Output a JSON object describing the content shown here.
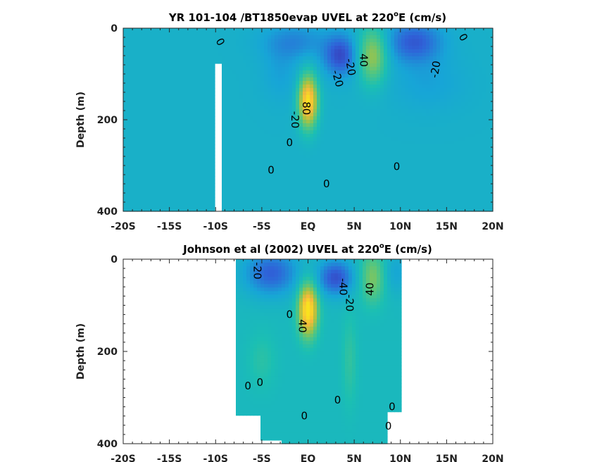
{
  "chart_data": [
    {
      "type": "heatmap",
      "id": "model",
      "title_main": "YR 101-104 /BT1850evap UVEL at 220",
      "title_sup": "o",
      "title_tail": "E (cm/s)",
      "ylabel": "Depth (m)",
      "x_ticks": [
        "-20S",
        "-15S",
        "-10S",
        "-5S",
        "EQ",
        "5N",
        "10N",
        "15N",
        "20N"
      ],
      "x_tick_values": [
        -20,
        -15,
        -10,
        -5,
        0,
        5,
        10,
        15,
        20
      ],
      "y_ticks": [
        "0",
        "200",
        "400"
      ],
      "y_tick_values": [
        0,
        200,
        400
      ],
      "xlim": [
        -20,
        20
      ],
      "ylim": [
        400,
        0
      ],
      "colormap": [
        "#3e26a8",
        "#2f62d8",
        "#17a5d7",
        "#1bbfb3",
        "#57c67d",
        "#aec23f",
        "#f4ba3b",
        "#f9e11f"
      ],
      "data_range": [
        -60,
        100
      ],
      "background_value": -5,
      "data_features": [
        {
          "lat": 0,
          "depth": 160,
          "value": 105,
          "sx": 1.0,
          "sz": 55
        },
        {
          "lat": 7,
          "depth": 60,
          "value": 55,
          "sx": 1.5,
          "sz": 60
        },
        {
          "lat": 3.5,
          "depth": 60,
          "value": -40,
          "sx": 1.8,
          "sz": 45
        },
        {
          "lat": -1.5,
          "depth": 30,
          "value": -20,
          "sx": 3.5,
          "sz": 40
        },
        {
          "lat": 11.5,
          "depth": 30,
          "value": -35,
          "sx": 3.0,
          "sz": 45
        },
        {
          "lat": 13,
          "depth": 120,
          "value": -10,
          "sx": 4.0,
          "sz": 60
        },
        {
          "lat": -3,
          "depth": 100,
          "value": -10,
          "sx": 2.0,
          "sz": 60
        }
      ],
      "mask": [
        {
          "lat_range": [
            -10,
            -9.2
          ],
          "depth_range": [
            80,
            400
          ]
        }
      ],
      "contour_labels": [
        {
          "text": "0",
          "lat": -9.5,
          "depth": 30,
          "angle": 60
        },
        {
          "text": "-20",
          "lat": 3.2,
          "depth": 110,
          "angle": 75
        },
        {
          "text": "-20",
          "lat": 4.6,
          "depth": 85,
          "angle": 80
        },
        {
          "text": "40",
          "lat": 6.0,
          "depth": 70,
          "angle": 90
        },
        {
          "text": "-20",
          "lat": 13.8,
          "depth": 90,
          "angle": -80
        },
        {
          "text": "0",
          "lat": 16.8,
          "depth": 20,
          "angle": 60
        },
        {
          "text": "80",
          "lat": -0.2,
          "depth": 175,
          "angle": 90
        },
        {
          "text": "-20",
          "lat": -1.4,
          "depth": 200,
          "angle": 90
        },
        {
          "text": "0",
          "lat": -2.0,
          "depth": 250,
          "angle": 0
        },
        {
          "text": "0",
          "lat": -4.0,
          "depth": 310,
          "angle": 0
        },
        {
          "text": "0",
          "lat": 2.0,
          "depth": 340,
          "angle": 0
        },
        {
          "text": "0",
          "lat": 9.6,
          "depth": 302,
          "angle": 0
        }
      ]
    },
    {
      "type": "heatmap",
      "id": "observed",
      "title_main": "Johnson et al (2002) UVEL at 220",
      "title_sup": "o",
      "title_tail": "E (cm/s)",
      "ylabel": "Depth (m)",
      "x_ticks": [
        "-20S",
        "-15S",
        "-10S",
        "-5S",
        "EQ",
        "5N",
        "10N",
        "15N",
        "20N"
      ],
      "x_tick_values": [
        -20,
        -15,
        -10,
        -5,
        0,
        5,
        10,
        15,
        20
      ],
      "y_ticks": [
        "0",
        "200",
        "400"
      ],
      "y_tick_values": [
        0,
        200,
        400
      ],
      "xlim": [
        -20,
        20
      ],
      "ylim": [
        400,
        0
      ],
      "colormap": [
        "#3e26a8",
        "#2f62d8",
        "#17a5d7",
        "#1bbfb3",
        "#57c67d",
        "#aec23f",
        "#f4ba3b",
        "#f9e11f"
      ],
      "data_range": [
        -60,
        100
      ],
      "background_value": 2,
      "data_lat_range": [
        -8,
        10
      ],
      "data_features": [
        {
          "lat": 0,
          "depth": 110,
          "value": 105,
          "sx": 1.0,
          "sz": 55
        },
        {
          "lat": 7,
          "depth": 40,
          "value": 40,
          "sx": 1.3,
          "sz": 55
        },
        {
          "lat": 3,
          "depth": 40,
          "value": -45,
          "sx": 2.0,
          "sz": 40
        },
        {
          "lat": -4,
          "depth": 30,
          "value": -40,
          "sx": 3.0,
          "sz": 50
        },
        {
          "lat": 9.5,
          "depth": 30,
          "value": -15,
          "sx": 1.5,
          "sz": 45
        },
        {
          "lat": 4.5,
          "depth": 220,
          "value": 15,
          "sx": 0.8,
          "sz": 100
        },
        {
          "lat": -5,
          "depth": 220,
          "value": 12,
          "sx": 1.5,
          "sz": 60
        }
      ],
      "mask": [
        {
          "lat_range": [
            -20,
            -8
          ],
          "depth_range": [
            0,
            400
          ]
        },
        {
          "lat_range": [
            10,
            20
          ],
          "depth_range": [
            0,
            400
          ]
        },
        {
          "lat_range": [
            -8,
            -5
          ],
          "depth_range": [
            335,
            400
          ]
        },
        {
          "lat_range": [
            -5,
            -3
          ],
          "depth_range": [
            395,
            400
          ]
        },
        {
          "lat_range": [
            8.5,
            10
          ],
          "depth_range": [
            330,
            400
          ]
        }
      ],
      "contour_labels": [
        {
          "text": "-20",
          "lat": -5.5,
          "depth": 25,
          "angle": 90
        },
        {
          "text": "-40",
          "lat": 3.8,
          "depth": 60,
          "angle": 90
        },
        {
          "text": "-20",
          "lat": 4.5,
          "depth": 95,
          "angle": 90
        },
        {
          "text": "40",
          "lat": 6.7,
          "depth": 65,
          "angle": -90
        },
        {
          "text": "0",
          "lat": -2.0,
          "depth": 120,
          "angle": 0
        },
        {
          "text": "40",
          "lat": -0.6,
          "depth": 145,
          "angle": 90
        },
        {
          "text": "0",
          "lat": -6.5,
          "depth": 275,
          "angle": 0
        },
        {
          "text": "0",
          "lat": -5.2,
          "depth": 267,
          "angle": 0
        },
        {
          "text": "0",
          "lat": 3.2,
          "depth": 305,
          "angle": 0
        },
        {
          "text": "0",
          "lat": 9.1,
          "depth": 320,
          "angle": 0
        },
        {
          "text": "0",
          "lat": 8.7,
          "depth": 362,
          "angle": 0
        },
        {
          "text": "0",
          "lat": -0.4,
          "depth": 340,
          "angle": 0
        }
      ]
    }
  ]
}
